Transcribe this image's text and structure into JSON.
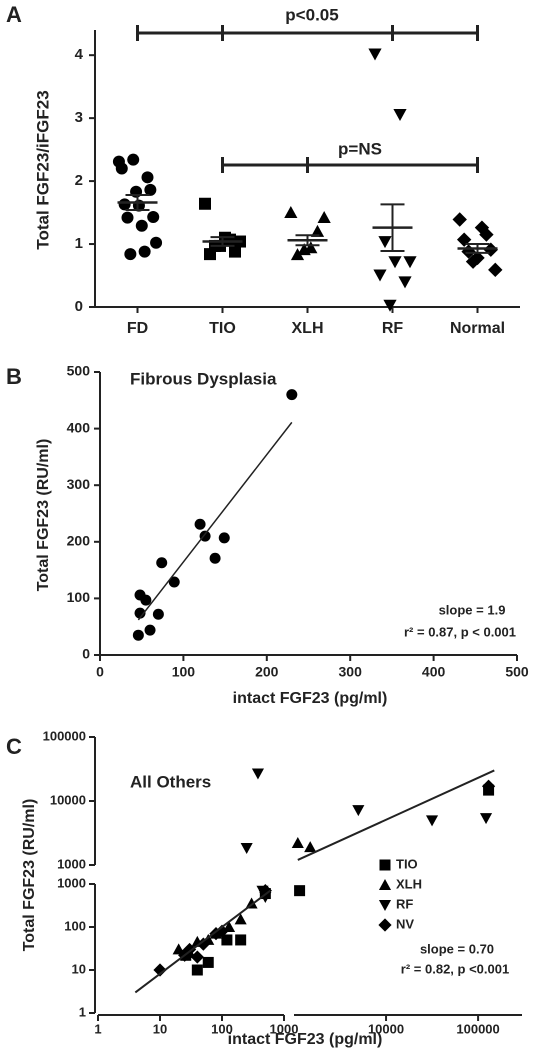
{
  "chart_data": [
    {
      "type": "dot",
      "panel_label": "A",
      "y_label": "Total FGF23/iFGF23",
      "categories": [
        "FD",
        "TIO",
        "XLH",
        "RF",
        "Normal"
      ],
      "points": [
        [
          2.31,
          2.34,
          2.06,
          2.2,
          1.83,
          1.86,
          1.63,
          1.61,
          1.43,
          1.42,
          1.29,
          1.02,
          0.84,
          0.88
        ],
        [
          1.64,
          1.07,
          0.97,
          1.04,
          1.1,
          0.84,
          0.88,
          0.97
        ],
        [
          1.5,
          1.42,
          1.2,
          0.94,
          0.91,
          0.83
        ],
        [
          4.02,
          3.06,
          1.04,
          0.72,
          0.72,
          0.51,
          0.4,
          0.03
        ],
        [
          1.39,
          1.26,
          1.07,
          1.15,
          0.88,
          0.91,
          0.72,
          0.59,
          0.78
        ]
      ],
      "means": [
        1.66,
        1.04,
        1.06,
        1.26,
        0.93
      ],
      "sems": [
        0.12,
        0.07,
        0.08,
        0.37,
        0.07
      ],
      "markers": [
        "circle",
        "square",
        "triangle",
        "triangle-down",
        "diamond"
      ],
      "color": "#000000",
      "ylim": [
        0,
        4.4
      ],
      "yticks": [
        0,
        1,
        2,
        3,
        4
      ],
      "annotations": [
        "p<0.05",
        "p=NS"
      ]
    },
    {
      "type": "scatter",
      "panel_label": "B",
      "title": "Fibrous Dysplasia",
      "x_label": "intact FGF23 (pg/ml)",
      "y_label": "Total FGF23 (RU/ml)",
      "x": [
        230,
        120,
        126,
        149,
        138,
        74,
        89,
        48,
        55,
        48,
        70,
        60,
        46
      ],
      "y": [
        460,
        231,
        210,
        207,
        171,
        163,
        129,
        106,
        97,
        74,
        72,
        44,
        35
      ],
      "marker": "circle",
      "color": "#000000",
      "fit_line": {
        "x": [
          46,
          230
        ],
        "y": [
          62,
          411
        ]
      },
      "annotations": [
        "slope = 1.9",
        "r² = 0.87, p < 0.001"
      ],
      "xlim": [
        0,
        500
      ],
      "ylim": [
        0,
        500
      ],
      "xticks": [
        0,
        100,
        200,
        300,
        400,
        500
      ],
      "yticks": [
        0,
        100,
        200,
        300,
        400,
        500
      ]
    },
    {
      "type": "broken-log-scatter",
      "panel_label": "C",
      "title": "All Others",
      "x_label": "intact FGF23 (pg/ml)",
      "y_label": "Total FGF23 (RU/ml)",
      "log_scale": true,
      "series": [
        {
          "name": "TIO",
          "marker": "square",
          "color": "#000000",
          "x": [
            26,
            40,
            60,
            120,
            200,
            500,
            1150,
            130000
          ],
          "y": [
            22,
            10,
            15,
            50,
            50,
            600,
            700,
            14800
          ]
        },
        {
          "name": "XLH",
          "marker": "triangle",
          "color": "#000000",
          "x": [
            20,
            30,
            40,
            60,
            80,
            130,
            200,
            300,
            1100,
            1500
          ],
          "y": [
            30,
            25,
            45,
            50,
            70,
            100,
            150,
            350,
            2200,
            1900
          ]
        },
        {
          "name": "RF",
          "marker": "triangle-down",
          "color": "#000000",
          "x": [
            380,
            250,
            450,
            500,
            5000,
            31600,
            122000
          ],
          "y": [
            27000,
            1850,
            700,
            500,
            7200,
            5000,
            5400
          ]
        },
        {
          "name": "NV",
          "marker": "diamond",
          "color": "#000000",
          "x": [
            10,
            25,
            30,
            40,
            50,
            80,
            100,
            500,
            130000
          ],
          "y": [
            10,
            22,
            30,
            20,
            40,
            70,
            80,
            700,
            17000
          ]
        }
      ],
      "fit_line": {
        "x": [
          4,
          600,
          null,
          1100,
          150000
        ],
        "y": [
          3,
          700,
          null,
          1200,
          30000
        ]
      },
      "annotations": [
        "slope = 0.70",
        "r² = 0.82, p <0.001"
      ],
      "x_segments": [
        {
          "lim": [
            1,
            1000
          ],
          "ticks": [
            1,
            10,
            100,
            1000
          ]
        },
        {
          "lim": [
            1000,
            300000
          ],
          "ticks": [
            10000,
            100000
          ]
        }
      ],
      "y_segments": [
        {
          "lim": [
            1,
            1000
          ],
          "ticks": [
            1,
            10,
            100,
            1000
          ]
        },
        {
          "lim": [
            1000,
            100000
          ],
          "ticks": [
            1000,
            10000,
            100000
          ]
        }
      ]
    }
  ]
}
